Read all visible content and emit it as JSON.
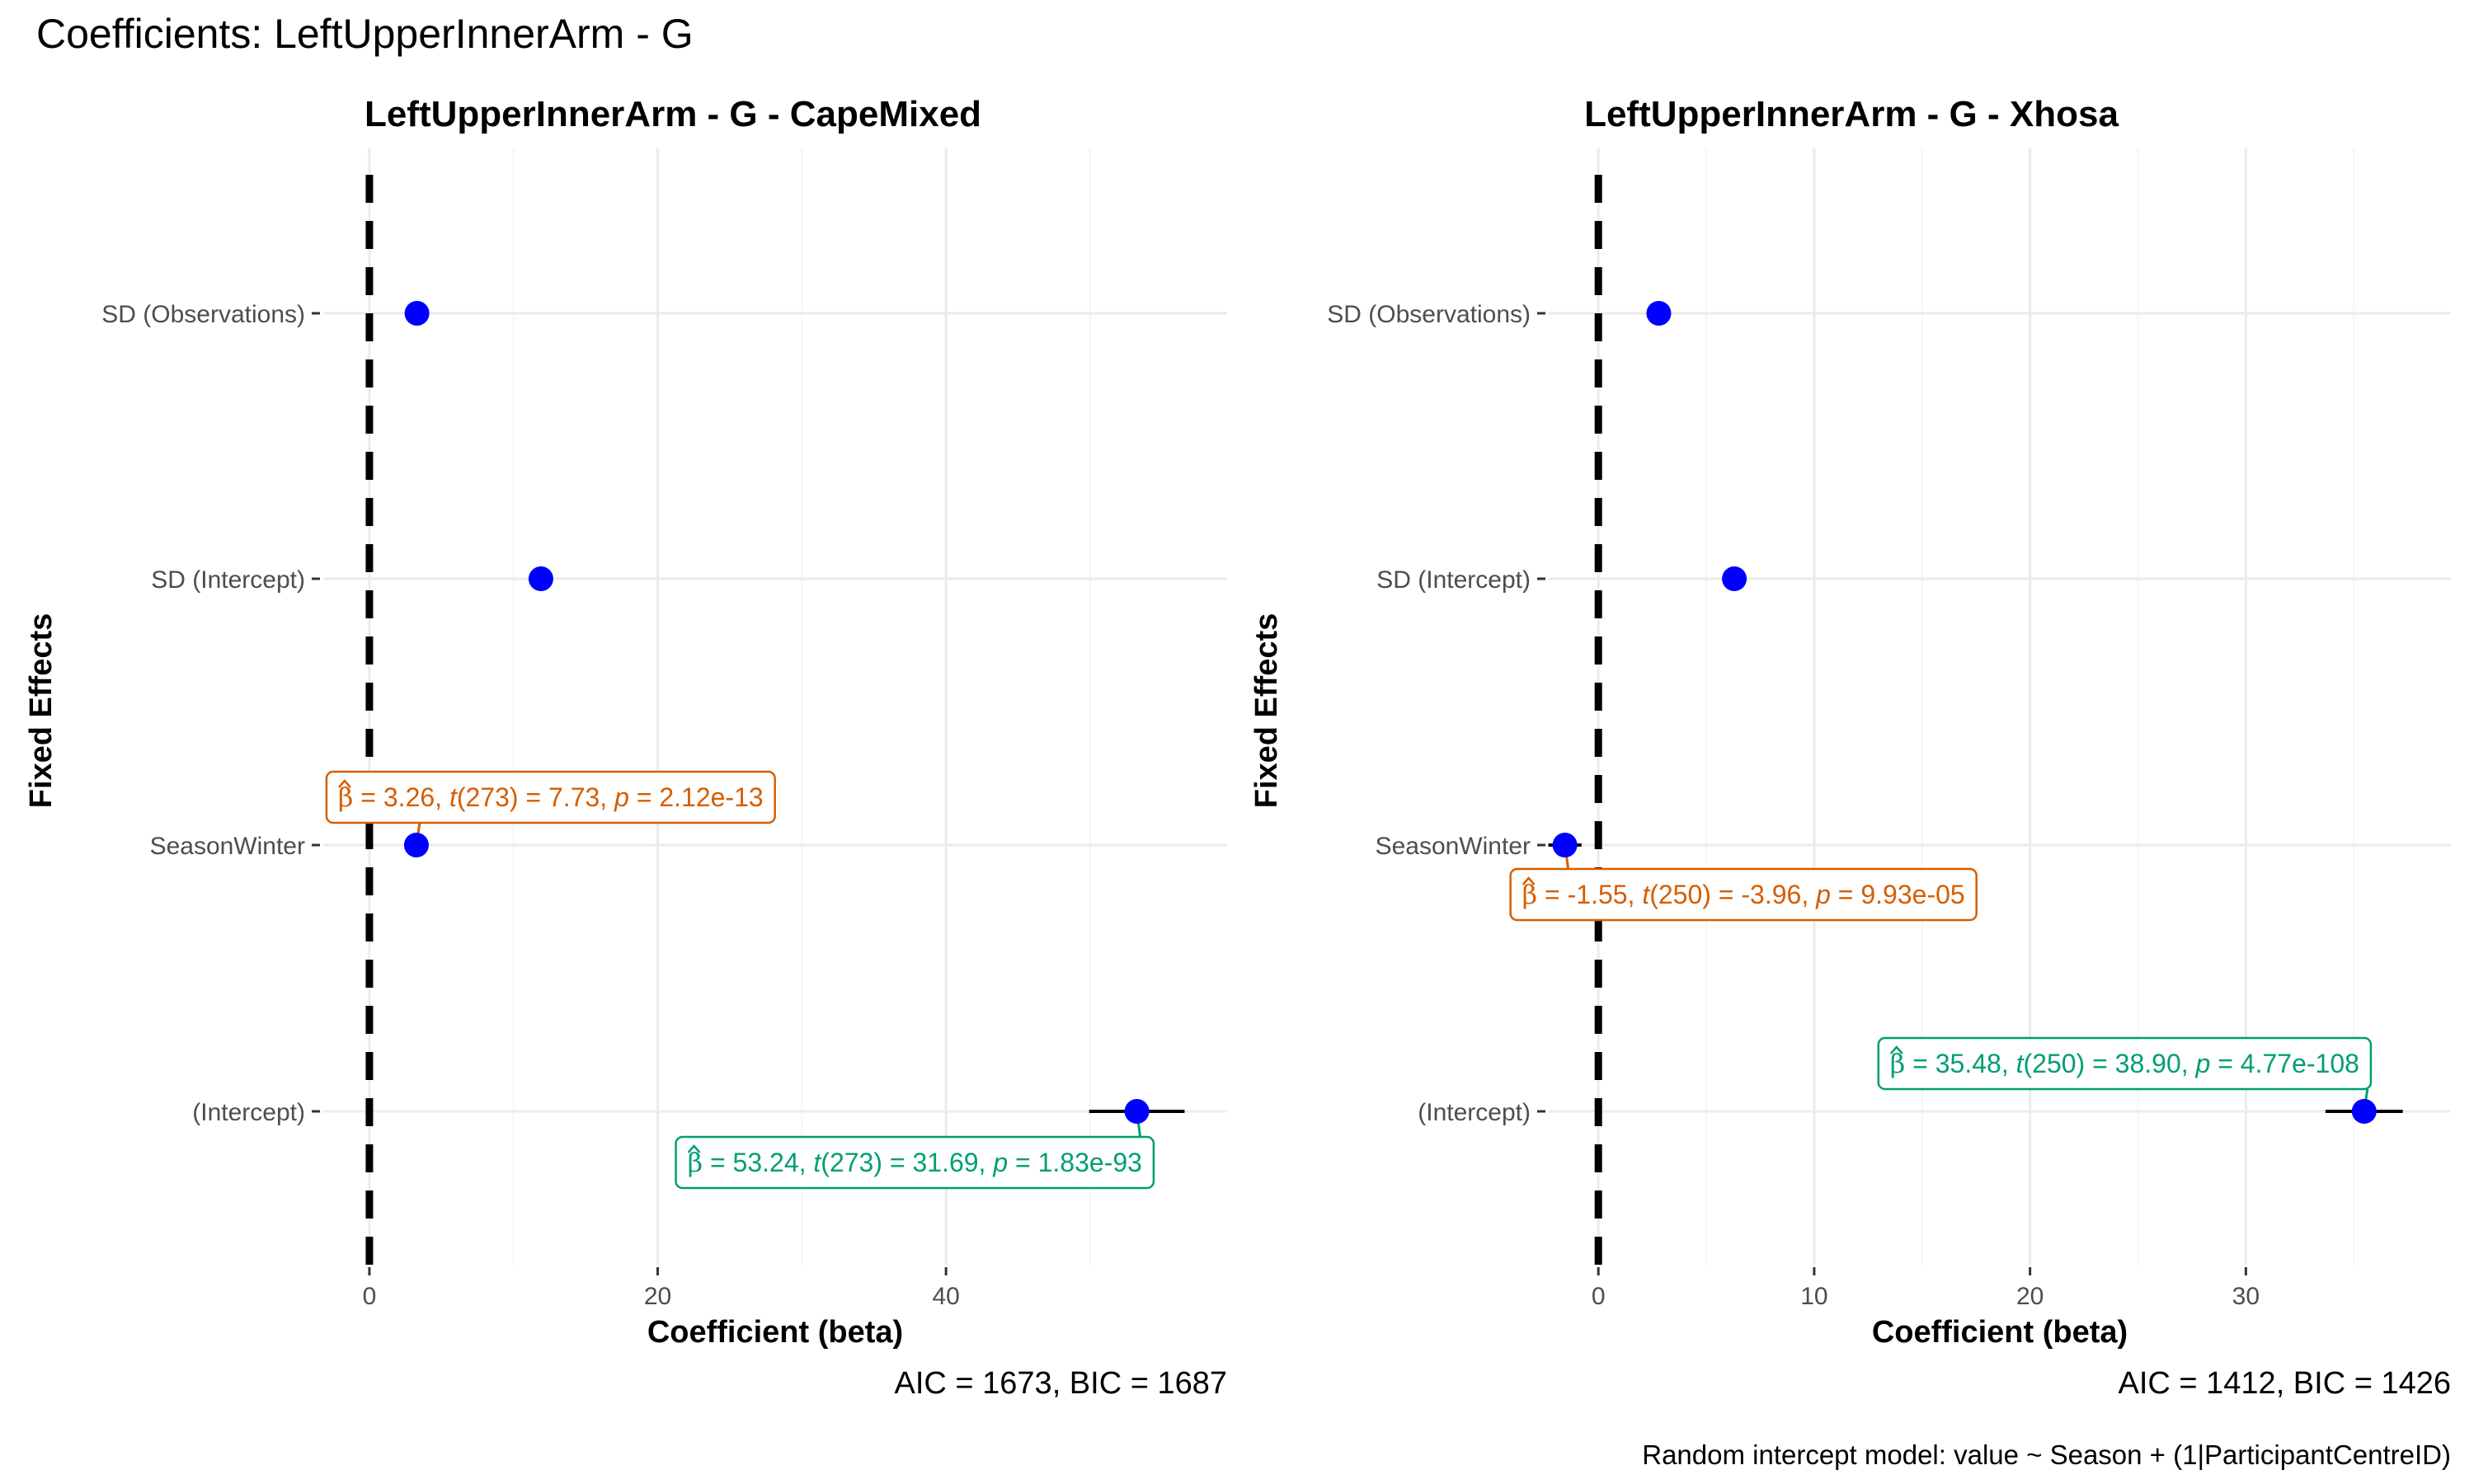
{
  "figure": {
    "title": "Coefficients: LeftUpperInnerArm - G",
    "caption": "Random intercept model: value ~ Season + (1|ParticipantCentreID)"
  },
  "colors": {
    "point": "#0000ff",
    "refline": "#000000",
    "grid_major": "#ebebeb",
    "grid_minor": "#f5f5f5",
    "label_season": "#d55e00",
    "label_intercept": "#009e73"
  },
  "chart_data": [
    {
      "type": "scatter",
      "title": "LeftUpperInnerArm - G - CapeMixed",
      "xlabel": "Coefficient (beta)",
      "ylabel": "Fixed Effects",
      "footer": "AIC = 1673, BIC = 1687",
      "categories": [
        "SD (Observations)",
        "SD (Intercept)",
        "SeasonWinter",
        "(Intercept)"
      ],
      "x_ticks": [
        0,
        20,
        40
      ],
      "x_minor": [
        10,
        30,
        50
      ],
      "xlim": [
        -3.2,
        59.5
      ],
      "reference_line": 0,
      "grid": true,
      "points": [
        {
          "category": "SD (Observations)",
          "estimate": 3.3
        },
        {
          "category": "SD (Intercept)",
          "estimate": 11.9
        },
        {
          "category": "SeasonWinter",
          "estimate": 3.26,
          "ci": [
            2.43,
            4.09
          ],
          "label": {
            "beta": "3.26",
            "t_df": "273",
            "t": "7.73",
            "p": "2.12e-13",
            "tone": "season"
          }
        },
        {
          "category": "(Intercept)",
          "estimate": 53.24,
          "ci": [
            49.93,
            56.55
          ],
          "label": {
            "beta": "53.24",
            "t_df": "273",
            "t": "31.69",
            "p": "1.83e-93",
            "tone": "intercept"
          }
        }
      ]
    },
    {
      "type": "scatter",
      "title": "LeftUpperInnerArm - G - Xhosa",
      "xlabel": "Coefficient (beta)",
      "ylabel": "Fixed Effects",
      "footer": "AIC = 1412, BIC = 1426",
      "categories": [
        "SD (Observations)",
        "SD (Intercept)",
        "SeasonWinter",
        "(Intercept)"
      ],
      "x_ticks": [
        0,
        10,
        20,
        30
      ],
      "x_minor": [
        5,
        15,
        25,
        35
      ],
      "xlim": [
        -2.3,
        39.5
      ],
      "reference_line": 0,
      "grid": true,
      "points": [
        {
          "category": "SD (Observations)",
          "estimate": 2.8
        },
        {
          "category": "SD (Intercept)",
          "estimate": 6.3
        },
        {
          "category": "SeasonWinter",
          "estimate": -1.55,
          "ci": [
            -2.32,
            -0.78
          ],
          "label": {
            "beta": "-1.55",
            "t_df": "250",
            "t": "-3.96",
            "p": "9.93e-05",
            "tone": "season"
          }
        },
        {
          "category": "(Intercept)",
          "estimate": 35.48,
          "ci": [
            33.69,
            37.27
          ],
          "label": {
            "beta": "35.48",
            "t_df": "250",
            "t": "38.90",
            "p": "4.77e-108",
            "tone": "intercept"
          }
        }
      ]
    }
  ]
}
